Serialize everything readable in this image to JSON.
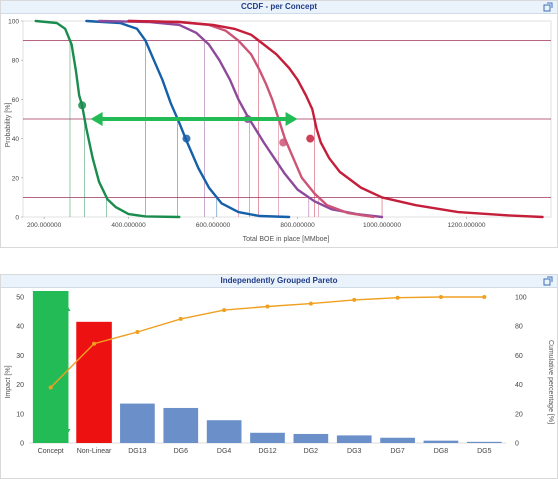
{
  "ccdf": {
    "title": "CCDF - per Concept",
    "chart_data": {
      "type": "line",
      "xlabel": "Total BOE in place [MMboe]",
      "ylabel": "Probability [%]",
      "xlim": [
        150,
        1400
      ],
      "ylim": [
        0,
        100
      ],
      "x_ticks": [
        "200.000000",
        "400.000000",
        "600.000000",
        "800.000000",
        "1000.000000",
        "1200.000000"
      ],
      "y_ticks": [
        "0",
        "20",
        "40",
        "60",
        "80",
        "100"
      ],
      "reference_lines_y": [
        10,
        50,
        90
      ],
      "series": [
        {
          "color": "#1a8c4e",
          "points": [
            [
              180,
              100
            ],
            [
              230,
              99
            ],
            [
              250,
              96
            ],
            [
              265,
              88
            ],
            [
              275,
              75
            ],
            [
              283,
              62
            ],
            [
              290,
              57
            ],
            [
              300,
              45
            ],
            [
              315,
              30
            ],
            [
              330,
              18
            ],
            [
              350,
              9
            ],
            [
              370,
              5
            ],
            [
              400,
              1.5
            ],
            [
              440,
              0.3
            ],
            [
              520,
              0
            ]
          ],
          "marker": [
            290,
            57
          ]
        },
        {
          "color": "#1560a8",
          "points": [
            [
              300,
              100
            ],
            [
              380,
              99
            ],
            [
              420,
              96
            ],
            [
              440,
              90
            ],
            [
              460,
              80
            ],
            [
              480,
              70
            ],
            [
              500,
              58
            ],
            [
              520,
              48
            ],
            [
              535,
              40
            ],
            [
              545,
              35
            ],
            [
              565,
              25
            ],
            [
              590,
              15
            ],
            [
              620,
              7
            ],
            [
              660,
              2.5
            ],
            [
              710,
              0.5
            ],
            [
              780,
              0
            ]
          ],
          "marker": [
            537,
            40
          ]
        },
        {
          "color": "#8e4a9a",
          "points": [
            [
              330,
              100
            ],
            [
              450,
              99.5
            ],
            [
              520,
              98
            ],
            [
              560,
              94
            ],
            [
              590,
              88
            ],
            [
              615,
              80
            ],
            [
              640,
              70
            ],
            [
              660,
              60
            ],
            [
              680,
              52
            ],
            [
              700,
              45
            ],
            [
              720,
              38
            ],
            [
              745,
              30
            ],
            [
              770,
              22
            ],
            [
              800,
              14
            ],
            [
              840,
              8
            ],
            [
              880,
              4
            ],
            [
              940,
              1.5
            ],
            [
              1000,
              0
            ]
          ],
          "marker": [
            682,
            50
          ]
        },
        {
          "color": "#cc5577",
          "points": [
            [
              400,
              100
            ],
            [
              520,
              99.5
            ],
            [
              590,
              98
            ],
            [
              630,
              95
            ],
            [
              660,
              90
            ],
            [
              690,
              83
            ],
            [
              710,
              75
            ],
            [
              725,
              68
            ],
            [
              740,
              60
            ],
            [
              755,
              50
            ],
            [
              770,
              40
            ],
            [
              790,
              30
            ],
            [
              810,
              20
            ],
            [
              840,
              12
            ],
            [
              870,
              6
            ],
            [
              920,
              2
            ],
            [
              980,
              0
            ]
          ],
          "marker": [
            766,
            38
          ]
        },
        {
          "color": "#c41e3a",
          "points": [
            [
              400,
              100
            ],
            [
              520,
              99.5
            ],
            [
              600,
              98
            ],
            [
              650,
              96
            ],
            [
              690,
              93
            ],
            [
              720,
              88
            ],
            [
              750,
              83
            ],
            [
              780,
              76
            ],
            [
              800,
              70
            ],
            [
              820,
              62
            ],
            [
              835,
              55
            ],
            [
              845,
              45
            ],
            [
              855,
              38
            ],
            [
              875,
              30
            ],
            [
              900,
              23
            ],
            [
              950,
              15
            ],
            [
              1000,
              10
            ],
            [
              1080,
              6
            ],
            [
              1180,
              2.5
            ],
            [
              1300,
              0.8
            ],
            [
              1380,
              0
            ]
          ],
          "marker": [
            830,
            40
          ]
        }
      ]
    }
  },
  "pareto": {
    "title": "Independently Grouped Pareto",
    "chart_data": {
      "type": "bar",
      "ylabel": "Impact [%]",
      "y2label": "Cumulative percentage [%]",
      "ylim": [
        0,
        50
      ],
      "y2lim": [
        0,
        100
      ],
      "y_ticks": [
        "0",
        "10",
        "20",
        "30",
        "40",
        "50"
      ],
      "y2_ticks": [
        "0",
        "20",
        "40",
        "60",
        "80",
        "100"
      ],
      "categories": [
        "Concept",
        "Non-Linear",
        "DG13",
        "DG6",
        "DG4",
        "DG12",
        "DG2",
        "DG3",
        "DG7",
        "DG8",
        "DG5"
      ],
      "values": [
        53,
        41.5,
        13.5,
        12,
        7.8,
        3.5,
        3.1,
        2.6,
        1.8,
        0.8,
        0.4
      ],
      "cumulative": [
        38,
        68,
        76,
        85,
        91,
        93.5,
        95.5,
        98,
        99.5,
        100,
        100
      ],
      "bar_colors": [
        "#22bb55",
        "#ee1111",
        "#6a8fc9",
        "#6a8fc9",
        "#6a8fc9",
        "#6a8fc9",
        "#6a8fc9",
        "#6a8fc9",
        "#6a8fc9",
        "#6a8fc9",
        "#6a8fc9"
      ],
      "line_color": "#f0a020"
    }
  },
  "colors": {
    "arrow": "#22bb55",
    "ref_line": "#a0305a"
  },
  "icons": {
    "expand": "expand-icon"
  }
}
